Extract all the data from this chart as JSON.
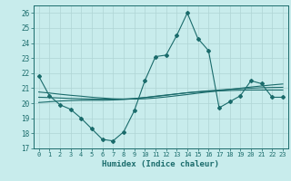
{
  "title": "",
  "xlabel": "Humidex (Indice chaleur)",
  "bg_color": "#c8ecec",
  "grid_color": "#afd4d4",
  "line_color": "#1a6b6b",
  "xlim": [
    -0.5,
    23.5
  ],
  "ylim": [
    17,
    26.5
  ],
  "yticks": [
    17,
    18,
    19,
    20,
    21,
    22,
    23,
    24,
    25,
    26
  ],
  "xticks": [
    0,
    1,
    2,
    3,
    4,
    5,
    6,
    7,
    8,
    9,
    10,
    11,
    12,
    13,
    14,
    15,
    16,
    17,
    18,
    19,
    20,
    21,
    22,
    23
  ],
  "main_y": [
    21.8,
    20.5,
    19.9,
    19.6,
    19.0,
    18.3,
    17.6,
    17.5,
    18.1,
    19.5,
    21.5,
    23.1,
    23.2,
    24.5,
    26.0,
    24.3,
    23.5,
    19.7,
    20.1,
    20.5,
    21.5,
    21.3,
    20.4,
    20.4
  ],
  "smooth1_y": [
    20.05,
    20.1,
    20.15,
    20.18,
    20.2,
    20.2,
    20.2,
    20.22,
    20.25,
    20.3,
    20.38,
    20.47,
    20.55,
    20.62,
    20.7,
    20.75,
    20.8,
    20.82,
    20.85,
    20.87,
    20.88,
    20.88,
    20.88,
    20.88
  ],
  "smooth2_y": [
    20.4,
    20.38,
    20.35,
    20.32,
    20.3,
    20.28,
    20.27,
    20.27,
    20.28,
    20.32,
    20.38,
    20.45,
    20.53,
    20.62,
    20.7,
    20.77,
    20.83,
    20.88,
    20.93,
    20.97,
    21.0,
    21.03,
    21.05,
    21.06
  ],
  "smooth3_y": [
    20.75,
    20.68,
    20.6,
    20.53,
    20.47,
    20.4,
    20.35,
    20.3,
    20.28,
    20.28,
    20.3,
    20.35,
    20.42,
    20.5,
    20.58,
    20.67,
    20.75,
    20.83,
    20.92,
    21.0,
    21.08,
    21.15,
    21.22,
    21.28
  ]
}
